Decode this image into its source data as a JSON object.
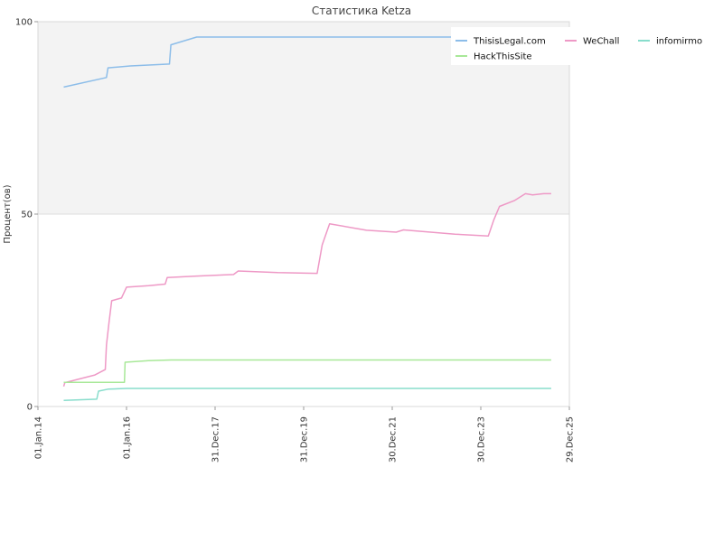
{
  "chart_data": {
    "type": "line",
    "title": "Статистика Ketza",
    "ylabel": "Процент(ов)",
    "xlabel": "",
    "ylim": [
      0,
      100
    ],
    "yticks": [
      0,
      50,
      100
    ],
    "xlim": [
      "2014-01-01",
      "2025-12-29"
    ],
    "xticks": [
      "2014-01-01",
      "2016-01-01",
      "2017-12-31",
      "2019-12-31",
      "2021-12-30",
      "2023-12-30",
      "2025-12-29"
    ],
    "xtick_labels": [
      "01.Jan.14",
      "01.Jan.16",
      "31.Dec.17",
      "31.Dec.19",
      "30.Dec.21",
      "30.Dec.23",
      "29.Dec.25"
    ],
    "grid": true,
    "legend_position": "top-right",
    "series": [
      {
        "name": "ThisisLegal.com",
        "color": "#8cbde9",
        "points": [
          [
            "2014-08-01",
            83
          ],
          [
            "2015-07-20",
            85.5
          ],
          [
            "2015-08-01",
            88
          ],
          [
            "2016-02-01",
            88.5
          ],
          [
            "2016-12-20",
            89
          ],
          [
            "2017-01-01",
            94
          ],
          [
            "2017-08-01",
            96
          ],
          [
            "2024-07-15",
            96
          ]
        ]
      },
      {
        "name": "WeChall",
        "color": "#ee99c6",
        "points": [
          [
            "2014-08-01",
            5.2
          ],
          [
            "2014-08-10",
            6.2
          ],
          [
            "2015-02-01",
            7.6
          ],
          [
            "2015-04-15",
            8.2
          ],
          [
            "2015-07-10",
            9.6
          ],
          [
            "2015-07-20",
            16
          ],
          [
            "2015-08-10",
            22
          ],
          [
            "2015-09-01",
            27.5
          ],
          [
            "2015-11-20",
            28.2
          ],
          [
            "2016-01-01",
            31
          ],
          [
            "2016-07-01",
            31.4
          ],
          [
            "2016-11-15",
            31.8
          ],
          [
            "2016-12-01",
            33.5
          ],
          [
            "2017-08-01",
            33.9
          ],
          [
            "2018-06-01",
            34.3
          ],
          [
            "2018-07-10",
            35.2
          ],
          [
            "2019-06-01",
            34.8
          ],
          [
            "2020-04-20",
            34.6
          ],
          [
            "2020-06-01",
            42
          ],
          [
            "2020-08-01",
            47.5
          ],
          [
            "2021-06-01",
            45.8
          ],
          [
            "2022-02-01",
            45.3
          ],
          [
            "2022-04-01",
            45.9
          ],
          [
            "2023-06-01",
            44.8
          ],
          [
            "2024-03-01",
            44.3
          ],
          [
            "2024-04-15",
            48.5
          ],
          [
            "2024-06-01",
            52
          ],
          [
            "2024-10-01",
            53.5
          ],
          [
            "2025-01-01",
            55.3
          ],
          [
            "2025-03-01",
            55
          ],
          [
            "2025-06-01",
            55.3
          ],
          [
            "2025-08-01",
            55.3
          ]
        ]
      },
      {
        "name": "infomirmo",
        "color": "#88ddcc",
        "points": [
          [
            "2014-08-01",
            1.6
          ],
          [
            "2015-05-01",
            1.9
          ],
          [
            "2015-05-15",
            4
          ],
          [
            "2015-08-01",
            4.5
          ],
          [
            "2016-01-01",
            4.7
          ],
          [
            "2025-08-01",
            4.7
          ]
        ]
      },
      {
        "name": "HackThisSite",
        "color": "#a8e898",
        "points": [
          [
            "2014-08-01",
            6.3
          ],
          [
            "2015-12-15",
            6.3
          ],
          [
            "2015-12-20",
            11.5
          ],
          [
            "2016-07-01",
            11.9
          ],
          [
            "2017-01-01",
            12.1
          ],
          [
            "2025-08-01",
            12.1
          ]
        ]
      }
    ]
  }
}
